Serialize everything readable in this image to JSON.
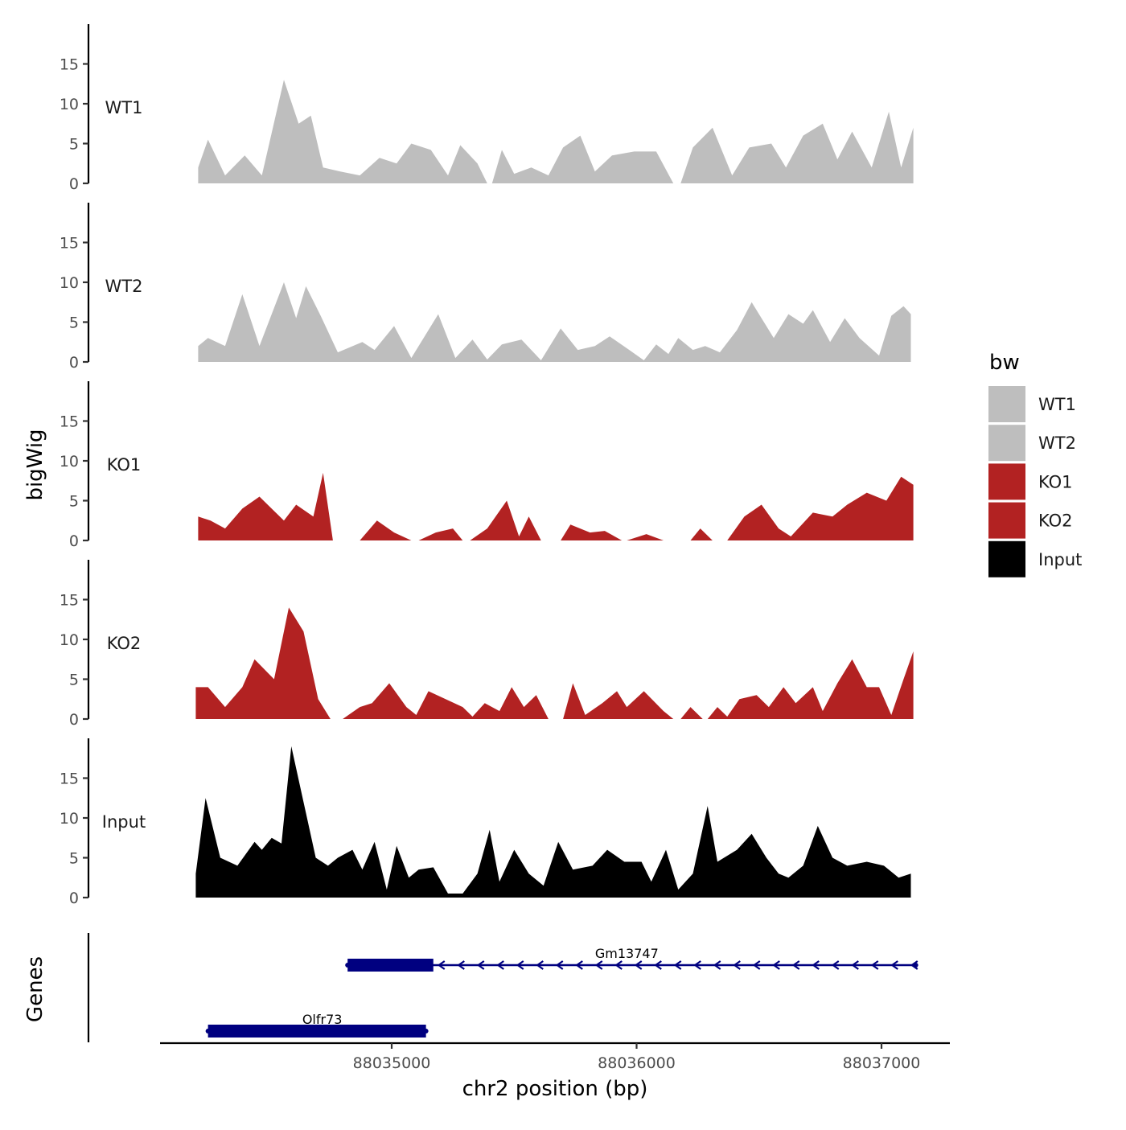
{
  "chart_data": {
    "type": "area",
    "title": "",
    "ylabel": "bigWig",
    "genes_label": "Genes",
    "xlabel": "chr2 position (bp)",
    "xlim": [
      88034060,
      88037290
    ],
    "x_ticks": [
      88035000,
      88036000,
      88037000
    ],
    "x_tick_labels": [
      "88035000",
      "88036000",
      "88037000"
    ],
    "ylim": [
      0,
      20
    ],
    "y_ticks": [
      0,
      5,
      10,
      15
    ],
    "y_tick_labels": [
      "0",
      "5",
      "10",
      "15"
    ],
    "legend": {
      "title": "bw",
      "position": "right",
      "entries": [
        {
          "label": "WT1",
          "color": "#bebebe"
        },
        {
          "label": "WT2",
          "color": "#bebebe"
        },
        {
          "label": "KO1",
          "color": "#b22222"
        },
        {
          "label": "KO2",
          "color": "#b22222"
        },
        {
          "label": "Input",
          "color": "#000000"
        }
      ]
    },
    "series": [
      {
        "name": "WT1",
        "color": "#bebebe",
        "points": [
          [
            88034210,
            2
          ],
          [
            88034250,
            5.5
          ],
          [
            88034320,
            1
          ],
          [
            88034400,
            3.5
          ],
          [
            88034470,
            1
          ],
          [
            88034560,
            13
          ],
          [
            88034620,
            7.5
          ],
          [
            88034670,
            8.5
          ],
          [
            88034720,
            2
          ],
          [
            88034790,
            1.5
          ],
          [
            88034870,
            1
          ],
          [
            88034950,
            3.2
          ],
          [
            88035020,
            2.5
          ],
          [
            88035080,
            5
          ],
          [
            88035160,
            4.2
          ],
          [
            88035230,
            1
          ],
          [
            88035280,
            4.8
          ],
          [
            88035350,
            2.5
          ],
          [
            88035390,
            0
          ],
          null,
          [
            88035410,
            0
          ],
          [
            88035450,
            4.2
          ],
          [
            88035500,
            1.2
          ],
          [
            88035570,
            2
          ],
          [
            88035640,
            1
          ],
          [
            88035700,
            4.5
          ],
          [
            88035770,
            6
          ],
          [
            88035830,
            1.5
          ],
          [
            88035900,
            3.5
          ],
          [
            88035990,
            4
          ],
          [
            88036080,
            4
          ],
          [
            88036150,
            0
          ],
          null,
          [
            88036180,
            0
          ],
          [
            88036230,
            4.5
          ],
          [
            88036310,
            7
          ],
          [
            88036390,
            1
          ],
          [
            88036460,
            4.5
          ],
          [
            88036550,
            5
          ],
          [
            88036610,
            2
          ],
          [
            88036680,
            6
          ],
          [
            88036760,
            7.5
          ],
          [
            88036820,
            3
          ],
          [
            88036880,
            6.5
          ],
          [
            88036960,
            2
          ],
          [
            88037030,
            9
          ],
          [
            88037080,
            2
          ],
          [
            88037130,
            7
          ]
        ]
      },
      {
        "name": "WT2",
        "color": "#bebebe",
        "points": [
          [
            88034210,
            2
          ],
          [
            88034250,
            3
          ],
          [
            88034320,
            2
          ],
          [
            88034390,
            8.5
          ],
          [
            88034460,
            2
          ],
          [
            88034560,
            10
          ],
          [
            88034610,
            5.5
          ],
          [
            88034650,
            9.5
          ],
          [
            88034710,
            5.8
          ],
          [
            88034780,
            1.2
          ],
          [
            88034880,
            2.5
          ],
          [
            88034930,
            1.5
          ],
          [
            88035010,
            4.5
          ],
          [
            88035080,
            0.5
          ],
          [
            88035190,
            6
          ],
          [
            88035260,
            0.5
          ],
          [
            88035330,
            2.8
          ],
          [
            88035390,
            0.3
          ],
          [
            88035450,
            2.2
          ],
          [
            88035530,
            2.8
          ],
          [
            88035610,
            0.2
          ],
          [
            88035690,
            4.2
          ],
          [
            88035760,
            1.5
          ],
          [
            88035830,
            2
          ],
          [
            88035890,
            3.2
          ],
          [
            88035970,
            1.5
          ],
          [
            88036030,
            0.2
          ],
          [
            88036080,
            2.2
          ],
          [
            88036130,
            1
          ],
          [
            88036170,
            3
          ],
          [
            88036230,
            1.5
          ],
          [
            88036280,
            2
          ],
          [
            88036340,
            1.2
          ],
          [
            88036410,
            4
          ],
          [
            88036470,
            7.5
          ],
          [
            88036560,
            3
          ],
          [
            88036620,
            6
          ],
          [
            88036680,
            4.8
          ],
          [
            88036720,
            6.5
          ],
          [
            88036790,
            2.5
          ],
          [
            88036850,
            5.5
          ],
          [
            88036910,
            3
          ],
          [
            88036990,
            0.8
          ],
          [
            88037040,
            5.8
          ],
          [
            88037090,
            7
          ],
          [
            88037120,
            6
          ]
        ]
      },
      {
        "name": "KO1",
        "color": "#b22222",
        "points": [
          [
            88034210,
            3
          ],
          [
            88034260,
            2.5
          ],
          [
            88034320,
            1.5
          ],
          [
            88034390,
            4
          ],
          [
            88034460,
            5.5
          ],
          [
            88034560,
            2.5
          ],
          [
            88034610,
            4.5
          ],
          [
            88034680,
            3
          ],
          [
            88034720,
            8.5
          ],
          [
            88034760,
            0
          ],
          null,
          [
            88034870,
            0
          ],
          [
            88034940,
            2.5
          ],
          [
            88035010,
            1
          ],
          [
            88035080,
            0
          ],
          null,
          [
            88035110,
            0
          ],
          [
            88035180,
            1
          ],
          [
            88035250,
            1.5
          ],
          [
            88035290,
            0
          ],
          null,
          [
            88035320,
            0
          ],
          [
            88035390,
            1.5
          ],
          [
            88035470,
            5
          ],
          [
            88035520,
            0.5
          ],
          [
            88035560,
            3
          ],
          [
            88035610,
            0
          ],
          null,
          [
            88035690,
            0
          ],
          [
            88035730,
            2
          ],
          [
            88035810,
            1
          ],
          [
            88035870,
            1.2
          ],
          [
            88035940,
            0
          ],
          null,
          [
            88035960,
            0
          ],
          [
            88036040,
            0.8
          ],
          [
            88036110,
            0
          ],
          null,
          [
            88036220,
            0
          ],
          [
            88036260,
            1.5
          ],
          [
            88036310,
            0
          ],
          null,
          [
            88036370,
            0
          ],
          [
            88036440,
            3
          ],
          [
            88036510,
            4.5
          ],
          [
            88036580,
            1.5
          ],
          [
            88036630,
            0.5
          ],
          [
            88036720,
            3.5
          ],
          [
            88036800,
            3
          ],
          [
            88036860,
            4.5
          ],
          [
            88036940,
            6
          ],
          [
            88037020,
            5
          ],
          [
            88037080,
            8
          ],
          [
            88037130,
            7
          ]
        ]
      },
      {
        "name": "KO2",
        "color": "#b22222",
        "points": [
          [
            88034200,
            4
          ],
          [
            88034250,
            4
          ],
          [
            88034320,
            1.5
          ],
          [
            88034390,
            4
          ],
          [
            88034440,
            7.5
          ],
          [
            88034520,
            5
          ],
          [
            88034580,
            14
          ],
          [
            88034640,
            11
          ],
          [
            88034700,
            2.5
          ],
          [
            88034750,
            0
          ],
          null,
          [
            88034800,
            0
          ],
          [
            88034870,
            1.5
          ],
          [
            88034920,
            2
          ],
          [
            88034990,
            4.5
          ],
          [
            88035060,
            1.5
          ],
          [
            88035100,
            0.5
          ],
          [
            88035150,
            3.5
          ],
          [
            88035220,
            2.5
          ],
          [
            88035290,
            1.5
          ],
          [
            88035330,
            0.3
          ],
          [
            88035380,
            2
          ],
          [
            88035440,
            1
          ],
          [
            88035490,
            4
          ],
          [
            88035540,
            1.5
          ],
          [
            88035590,
            3
          ],
          [
            88035640,
            0
          ],
          null,
          [
            88035700,
            0
          ],
          [
            88035740,
            4.5
          ],
          [
            88035790,
            0.5
          ],
          [
            88035860,
            2
          ],
          [
            88035920,
            3.5
          ],
          [
            88035960,
            1.5
          ],
          [
            88036030,
            3.5
          ],
          [
            88036110,
            1
          ],
          [
            88036150,
            0
          ],
          null,
          [
            88036180,
            0
          ],
          [
            88036220,
            1.5
          ],
          [
            88036270,
            0
          ],
          null,
          [
            88036290,
            0
          ],
          [
            88036330,
            1.5
          ],
          [
            88036370,
            0.3
          ],
          [
            88036420,
            2.5
          ],
          [
            88036490,
            3
          ],
          [
            88036540,
            1.5
          ],
          [
            88036600,
            4
          ],
          [
            88036650,
            2
          ],
          [
            88036720,
            4
          ],
          [
            88036760,
            1
          ],
          [
            88036820,
            4.5
          ],
          [
            88036880,
            7.5
          ],
          [
            88036940,
            4
          ],
          [
            88036990,
            4
          ],
          [
            88037040,
            0.5
          ],
          [
            88037090,
            5
          ],
          [
            88037130,
            8.5
          ]
        ]
      },
      {
        "name": "Input",
        "color": "#000000",
        "points": [
          [
            88034200,
            3
          ],
          [
            88034240,
            12.5
          ],
          [
            88034300,
            5
          ],
          [
            88034370,
            4
          ],
          [
            88034440,
            7
          ],
          [
            88034470,
            6
          ],
          [
            88034510,
            7.5
          ],
          [
            88034550,
            6.8
          ],
          [
            88034590,
            19
          ],
          [
            88034640,
            12
          ],
          [
            88034690,
            5
          ],
          [
            88034740,
            4
          ],
          [
            88034780,
            5
          ],
          [
            88034840,
            6
          ],
          [
            88034880,
            3.5
          ],
          [
            88034930,
            7
          ],
          [
            88034980,
            1
          ],
          [
            88035020,
            6.5
          ],
          [
            88035070,
            2.5
          ],
          [
            88035110,
            3.5
          ],
          [
            88035170,
            3.8
          ],
          [
            88035230,
            0.5
          ],
          [
            88035290,
            0.5
          ],
          [
            88035350,
            3
          ],
          [
            88035400,
            8.5
          ],
          [
            88035440,
            2
          ],
          [
            88035500,
            6
          ],
          [
            88035560,
            3
          ],
          [
            88035620,
            1.5
          ],
          [
            88035680,
            7
          ],
          [
            88035740,
            3.5
          ],
          [
            88035820,
            4
          ],
          [
            88035880,
            6
          ],
          [
            88035950,
            4.5
          ],
          [
            88036020,
            4.5
          ],
          [
            88036060,
            2
          ],
          [
            88036120,
            6
          ],
          [
            88036170,
            1
          ],
          [
            88036230,
            3
          ],
          [
            88036290,
            11.5
          ],
          [
            88036330,
            4.5
          ],
          [
            88036410,
            6
          ],
          [
            88036470,
            8
          ],
          [
            88036530,
            5
          ],
          [
            88036580,
            3
          ],
          [
            88036620,
            2.5
          ],
          [
            88036680,
            4
          ],
          [
            88036740,
            9
          ],
          [
            88036800,
            5
          ],
          [
            88036860,
            4
          ],
          [
            88036940,
            4.5
          ],
          [
            88037010,
            4
          ],
          [
            88037070,
            2.5
          ],
          [
            88037120,
            3
          ]
        ]
      }
    ],
    "genes": [
      {
        "name": "Olfr73",
        "strand": "-",
        "start": 88034250,
        "end": 88035140,
        "thick_start": 88034250,
        "thick_end": 88035140,
        "color": "#000080"
      },
      {
        "name": "Gm13747",
        "strand": "-",
        "start": 88034820,
        "end": 88037140,
        "thick_start": 88034820,
        "thick_end": 88035170,
        "color": "#000080"
      }
    ]
  }
}
